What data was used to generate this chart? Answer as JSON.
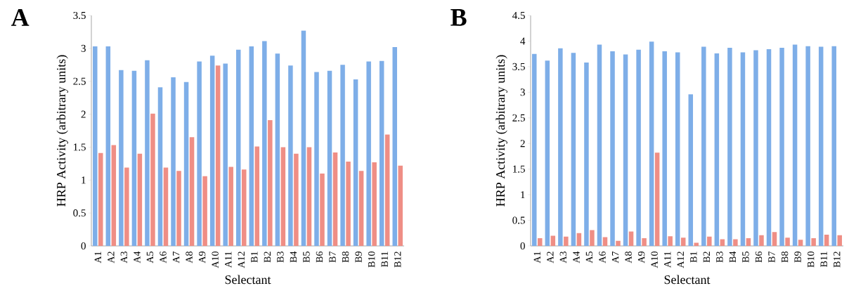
{
  "chart_data": [
    {
      "type": "bar",
      "title": "A",
      "xlabel": "Selectant",
      "ylabel": "HRP Activity (arbitrary units)",
      "categories": [
        "A1",
        "A2",
        "A3",
        "A4",
        "A5",
        "A6",
        "A7",
        "A8",
        "A9",
        "A10",
        "A11",
        "A12",
        "B1",
        "B2",
        "B3",
        "B4",
        "B5",
        "B6",
        "B7",
        "B8",
        "B9",
        "B10",
        "B11",
        "B12"
      ],
      "series": [
        {
          "color": "#7eaee8",
          "values": [
            3.03,
            3.03,
            2.67,
            2.66,
            2.82,
            2.41,
            2.56,
            2.49,
            2.8,
            2.89,
            2.77,
            2.98,
            3.03,
            3.11,
            2.92,
            2.74,
            3.27,
            2.64,
            2.66,
            2.75,
            2.53,
            2.8,
            2.81,
            3.02
          ]
        },
        {
          "color": "#ef8e85",
          "values": [
            1.41,
            1.53,
            1.19,
            1.4,
            2.01,
            1.19,
            1.14,
            1.65,
            1.06,
            2.74,
            1.2,
            1.16,
            1.51,
            1.91,
            1.5,
            1.4,
            1.5,
            1.1,
            1.42,
            1.28,
            1.14,
            1.27,
            1.69,
            1.22
          ]
        }
      ],
      "ylim": [
        0,
        3.5
      ],
      "yticks": [
        0,
        0.5,
        1,
        1.5,
        2,
        2.5,
        3,
        3.5
      ]
    },
    {
      "type": "bar",
      "title": "B",
      "xlabel": "Selectant",
      "ylabel": "HRP Activity (arbitrary units)",
      "categories": [
        "A1",
        "A2",
        "A3",
        "A4",
        "A5",
        "A6",
        "A7",
        "A8",
        "A9",
        "A10",
        "A11",
        "A12",
        "B1",
        "B2",
        "B3",
        "B4",
        "B5",
        "B6",
        "B7",
        "B8",
        "B9",
        "B10",
        "B11",
        "B12"
      ],
      "series": [
        {
          "color": "#7eaee8",
          "values": [
            3.75,
            3.62,
            3.86,
            3.77,
            3.58,
            3.93,
            3.8,
            3.74,
            3.83,
            3.99,
            3.8,
            3.78,
            2.96,
            3.89,
            3.76,
            3.87,
            3.78,
            3.82,
            3.84,
            3.87,
            3.93,
            3.9,
            3.89,
            3.9
          ]
        },
        {
          "color": "#ef8e85",
          "values": [
            0.15,
            0.2,
            0.18,
            0.25,
            0.31,
            0.17,
            0.1,
            0.28,
            0.15,
            1.82,
            0.19,
            0.16,
            0.06,
            0.18,
            0.13,
            0.13,
            0.15,
            0.21,
            0.27,
            0.16,
            0.12,
            0.15,
            0.22,
            0.21
          ]
        }
      ],
      "ylim": [
        0,
        4.5
      ],
      "yticks": [
        0,
        0.5,
        1,
        1.5,
        2,
        2.5,
        3,
        3.5,
        4,
        4.5
      ]
    }
  ]
}
